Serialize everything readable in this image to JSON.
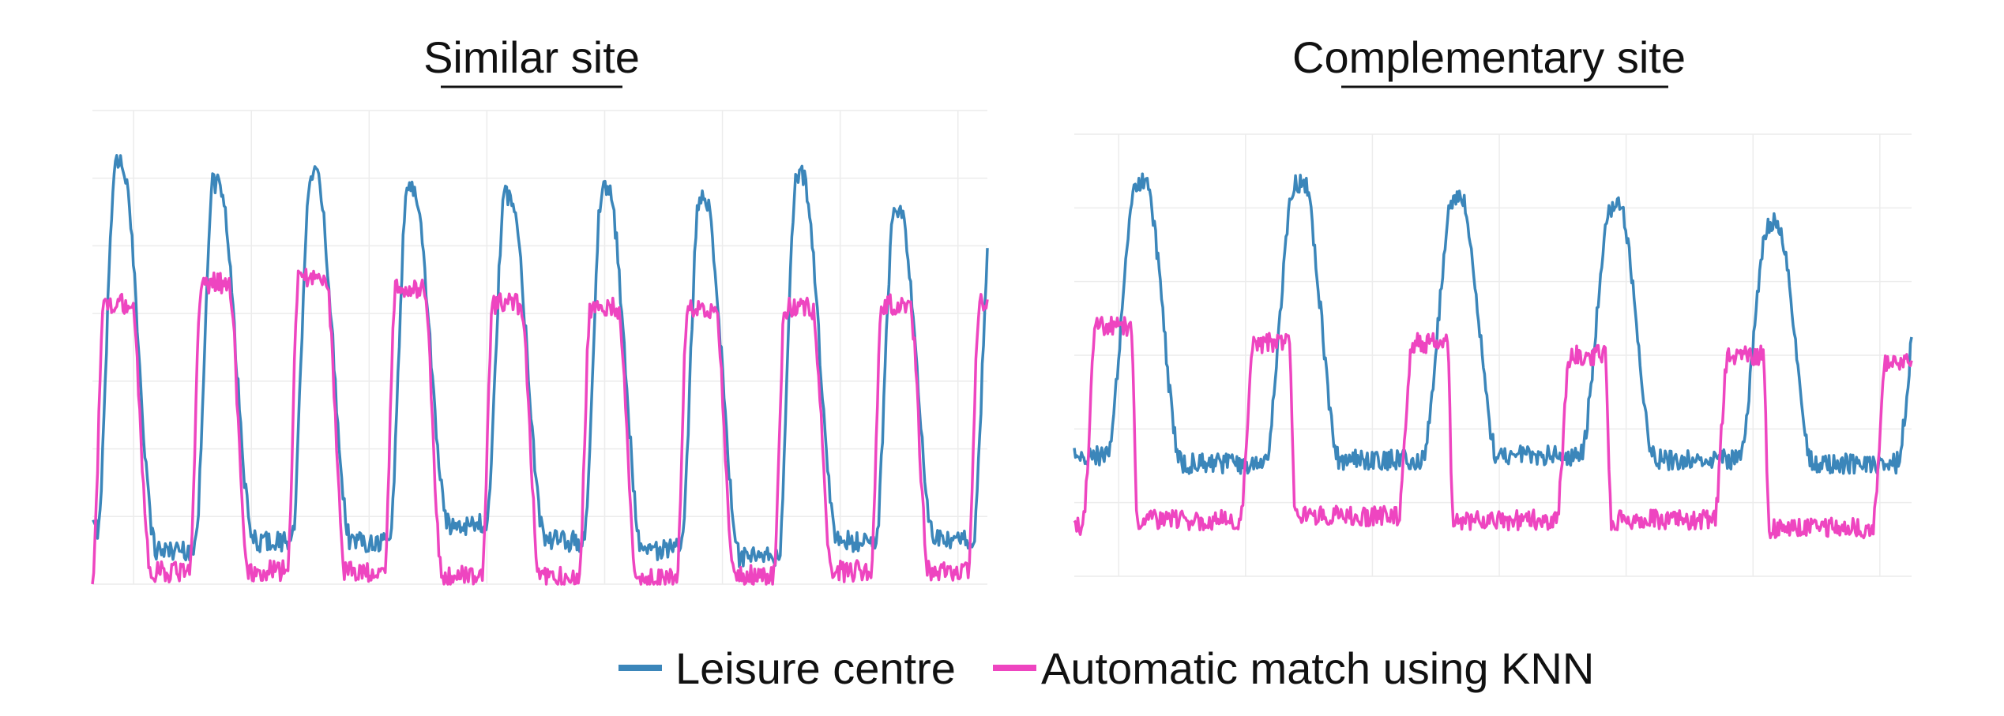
{
  "colors": {
    "leisure": "#3b86ba",
    "knn": "#ee45c0",
    "grid": "#ececec",
    "text": "#111111"
  },
  "legend": {
    "leisure_label": "Leisure centre",
    "knn_label": "Automatic match using KNN"
  },
  "chart_data": [
    {
      "type": "line",
      "title": "Similar site",
      "xlabel": "",
      "ylabel": "",
      "grid": true,
      "x_range": [
        0,
        9.2
      ],
      "ylim": [
        0,
        1.1
      ],
      "x_unit": "day",
      "series": [
        {
          "name": "Leisure centre",
          "period": 1,
          "troughs": [
            0.13,
            0.08,
            0.1,
            0.1,
            0.14,
            0.1,
            0.08,
            0.06,
            0.1
          ],
          "peaks": [
            0.98,
            0.93,
            0.95,
            0.92,
            0.9,
            0.92,
            0.9,
            0.95,
            0.86
          ],
          "rise_phase": [
            0.05,
            0.24
          ],
          "fall_phase": [
            0.3,
            0.66
          ]
        },
        {
          "name": "Automatic match using KNN",
          "period": 1,
          "troughs": [
            0.02,
            0.03,
            0.03,
            0.03,
            0.02,
            0.02,
            0.01,
            0.02,
            0.03
          ],
          "peaks": [
            0.65,
            0.7,
            0.71,
            0.69,
            0.65,
            0.64,
            0.64,
            0.64,
            0.65
          ],
          "rise_phase": [
            0.0,
            0.12
          ],
          "fall_phase": [
            0.4,
            0.6
          ]
        }
      ]
    },
    {
      "type": "line",
      "title": "Complementary site",
      "xlabel": "",
      "ylabel": "",
      "grid": true,
      "x_range": [
        0,
        5.3
      ],
      "ylim": [
        0,
        1.1
      ],
      "x_unit": "day",
      "series": [
        {
          "name": "Leisure centre",
          "period": 1,
          "troughs": [
            0.3,
            0.28,
            0.29,
            0.3,
            0.29,
            0.28
          ],
          "peaks": [
            0.98,
            0.98,
            0.94,
            0.92,
            0.88,
            0.9
          ],
          "rise_phase": [
            0.2,
            0.4
          ],
          "fall_phase": [
            0.45,
            0.68
          ]
        },
        {
          "name": "Automatic match using KNN",
          "period": 1,
          "troughs": [
            0.12,
            0.14,
            0.15,
            0.14,
            0.14,
            0.12
          ],
          "peaks": [
            0.62,
            0.58,
            0.58,
            0.55,
            0.55,
            0.53
          ],
          "rise_phase": [
            0.05,
            0.14
          ],
          "fall_phase": [
            0.36,
            0.4
          ]
        }
      ]
    }
  ]
}
